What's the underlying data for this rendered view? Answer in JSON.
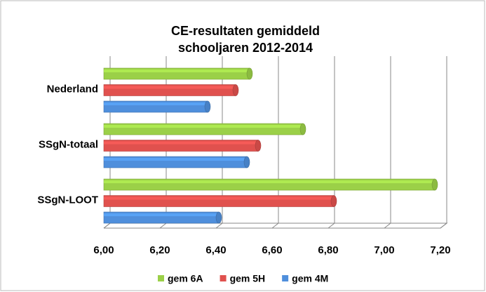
{
  "chart_data": {
    "type": "hbar3d",
    "title": [
      "CE-resultaten gemiddeld",
      "schooljaren 2012-2014"
    ],
    "categories": [
      "Nederland",
      "SSgN-totaal",
      "SSgN-LOOT"
    ],
    "series": [
      {
        "name": "gem 6A",
        "color": "#9bd048",
        "values": [
          6.52,
          6.71,
          7.18
        ]
      },
      {
        "name": "gem 5H",
        "color": "#e0514e",
        "values": [
          6.47,
          6.55,
          6.82
        ]
      },
      {
        "name": "gem 4M",
        "color": "#4f8fdc",
        "values": [
          6.37,
          6.51,
          6.41
        ]
      }
    ],
    "xlim": [
      6,
      7.2
    ],
    "xticks": [
      {
        "value": 6,
        "label": "6,00"
      },
      {
        "value": 6.2,
        "label": "6,20"
      },
      {
        "value": 6.4,
        "label": "6,40"
      },
      {
        "value": 6.6,
        "label": "6,60"
      },
      {
        "value": 6.8,
        "label": "6,80"
      },
      {
        "value": 7,
        "label": "7,00"
      },
      {
        "value": 7.2,
        "label": "7,20"
      }
    ],
    "grid": true,
    "legend": "bottom"
  }
}
